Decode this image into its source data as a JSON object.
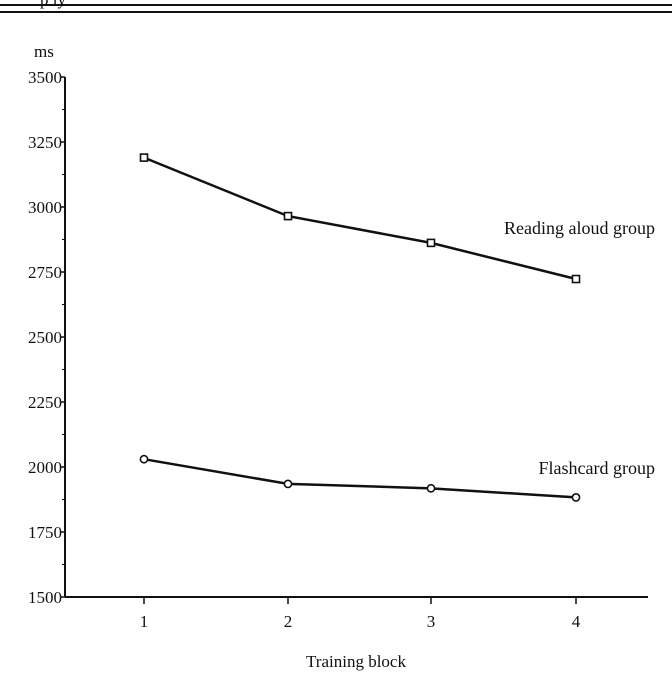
{
  "header": {
    "partial_text": "p ly"
  },
  "chart_data": {
    "type": "line",
    "categories": [
      "1",
      "2",
      "3",
      "4"
    ],
    "series": [
      {
        "name": "Reading aloud group",
        "marker": "square",
        "values": [
          3190,
          2965,
          2862,
          2723
        ]
      },
      {
        "name": "Flashcard group",
        "marker": "circle",
        "values": [
          2030,
          1935,
          1918,
          1883
        ]
      }
    ],
    "xlabel": "Training block",
    "ylabel": "ms",
    "ylim": [
      1500,
      3500
    ],
    "yticks": [
      "1500",
      "1750",
      "2000",
      "2250",
      "2500",
      "2750",
      "3000",
      "3250",
      "3500"
    ],
    "grid": false,
    "legend": "inline labels at right of each line",
    "colors": {
      "line": "#111111",
      "background": "#ffffff"
    }
  }
}
